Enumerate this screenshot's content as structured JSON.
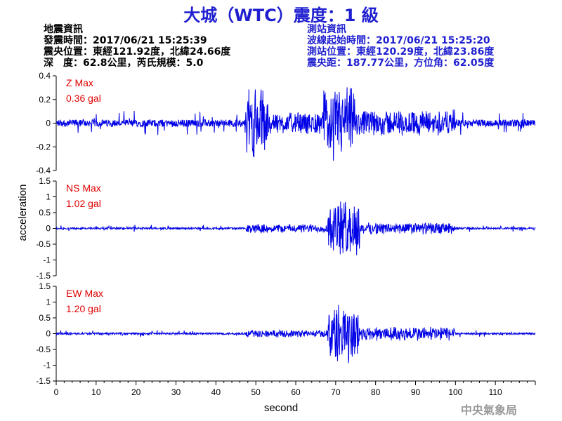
{
  "title": "大城（WTC）震度：1 級",
  "quake_info": {
    "heading": "地震資訊",
    "origin_time": "發震時間：2017/06/21 15:25:39",
    "epicenter": "震央位置：東經121.92度，北緯24.66度",
    "depth_magnitude": "深　度：62.8公里，芮氏規模：5.0"
  },
  "station_info": {
    "heading": "測站資訊",
    "wave_start": "波線起始時間：2017/06/21 15:25:20",
    "location": "測站位置：東經120.29度，北緯23.86度",
    "distance": "震央距：187.77公里，方位角：62.05度"
  },
  "agency": "中央氣象局",
  "chart_data": [
    {
      "type": "line",
      "component": "Z",
      "max_label": "Z Max",
      "max_value": "0.36 gal",
      "ylim": [
        -0.4,
        0.4
      ],
      "yticks": [
        "0.4",
        "0.2",
        "0",
        "-0.2",
        "-0.4"
      ],
      "peak": 0.36,
      "baseline_amp": 0.05,
      "events": [
        {
          "start": 47.5,
          "end": 53,
          "amp": 0.32
        },
        {
          "start": 53,
          "end": 67,
          "amp": 0.1
        },
        {
          "start": 67,
          "end": 75,
          "amp": 0.33
        },
        {
          "start": 75,
          "end": 100,
          "amp": 0.12
        }
      ]
    },
    {
      "type": "line",
      "component": "NS",
      "max_label": "NS Max",
      "max_value": "1.02 gal",
      "ylim": [
        -1.5,
        1.5
      ],
      "yticks": [
        "1.5",
        "1",
        "0.5",
        "0",
        "-0.5",
        "-1",
        "-1.5"
      ],
      "peak": 1.02,
      "baseline_amp": 0.05,
      "events": [
        {
          "start": 47.5,
          "end": 68,
          "amp": 0.15
        },
        {
          "start": 68,
          "end": 76,
          "amp": 0.95
        },
        {
          "start": 76,
          "end": 100,
          "amp": 0.2
        }
      ]
    },
    {
      "type": "line",
      "component": "EW",
      "max_label": "EW Max",
      "max_value": "1.20 gal",
      "ylim": [
        -1.5,
        1.5
      ],
      "yticks": [
        "1.5",
        "1",
        "0.5",
        "0",
        "-0.5",
        "-1",
        "-1.5"
      ],
      "peak": 1.2,
      "baseline_amp": 0.05,
      "events": [
        {
          "start": 47.5,
          "end": 68,
          "amp": 0.12
        },
        {
          "start": 68,
          "end": 76,
          "amp": 1.0
        },
        {
          "start": 76,
          "end": 100,
          "amp": 0.25
        }
      ]
    }
  ],
  "x_axis": {
    "label": "second",
    "xlim": [
      0,
      120
    ],
    "ticks": [
      0,
      10,
      20,
      30,
      40,
      50,
      60,
      70,
      80,
      90,
      100,
      110
    ]
  },
  "y_axis_label": "acceleration",
  "colors": {
    "trace": "#0000e6",
    "max_label": "#e00000",
    "title": "#1f1fd0",
    "agency": "#9a9a9a"
  }
}
